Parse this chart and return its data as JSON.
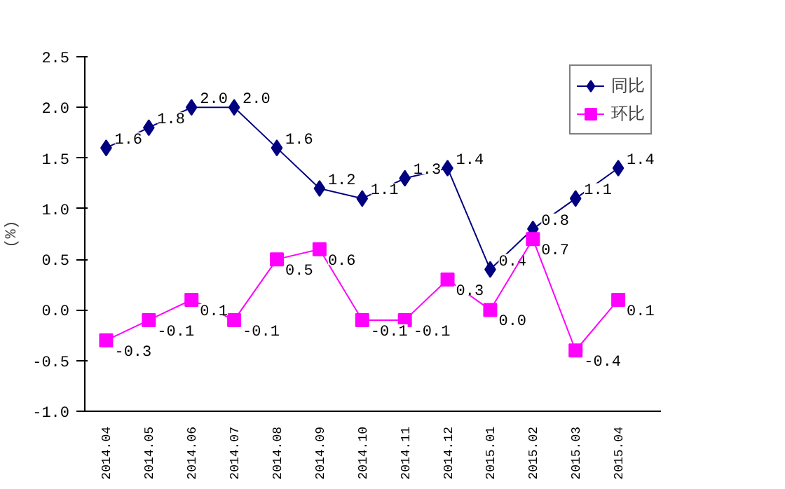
{
  "chart_data": {
    "type": "line",
    "ylabel": "(%)",
    "categories": [
      "2014.04",
      "2014.05",
      "2014.06",
      "2014.07",
      "2014.08",
      "2014.09",
      "2014.10",
      "2014.11",
      "2014.12",
      "2015.01",
      "2015.02",
      "2015.03",
      "2015.04"
    ],
    "series": [
      {
        "name": "同比",
        "color": "#000080",
        "marker": "diamond",
        "values": [
          1.6,
          1.8,
          2.0,
          2.0,
          1.6,
          1.2,
          1.1,
          1.3,
          1.4,
          0.4,
          0.8,
          1.1,
          1.4
        ],
        "value_labels": [
          "1.6",
          "1.8",
          "2.0",
          "2.0",
          "1.6",
          "1.2",
          "1.1",
          "1.3",
          "1.4",
          "0.4",
          "0.8",
          "1.1",
          "1.4"
        ]
      },
      {
        "name": "环比",
        "color": "#ff00ff",
        "marker": "square",
        "values": [
          -0.3,
          -0.1,
          0.1,
          -0.1,
          0.5,
          0.6,
          -0.1,
          -0.1,
          0.3,
          0.0,
          0.7,
          -0.4,
          0.1
        ],
        "value_labels": [
          "-0.3",
          "-0.1",
          "0.1",
          "-0.1",
          "0.5",
          "0.6",
          "-0.1",
          "-0.1",
          "0.3",
          "0.0",
          "0.7",
          "-0.4",
          "0.1"
        ]
      }
    ],
    "ylim": [
      -1.0,
      2.5
    ],
    "yticks": [
      {
        "value": -1.0,
        "label": "-1.0"
      },
      {
        "value": -0.5,
        "label": "-0.5"
      },
      {
        "value": 0,
        "label": "0.0"
      },
      {
        "value": 0.5,
        "label": "0.5"
      },
      {
        "value": 1.0,
        "label": "1.0"
      },
      {
        "value": 1.5,
        "label": "1.5"
      },
      {
        "value": 2.0,
        "label": "2.0"
      },
      {
        "value": 2.5,
        "label": "2.5"
      }
    ],
    "grid": false,
    "legend": "top right",
    "line_style": "solid"
  }
}
